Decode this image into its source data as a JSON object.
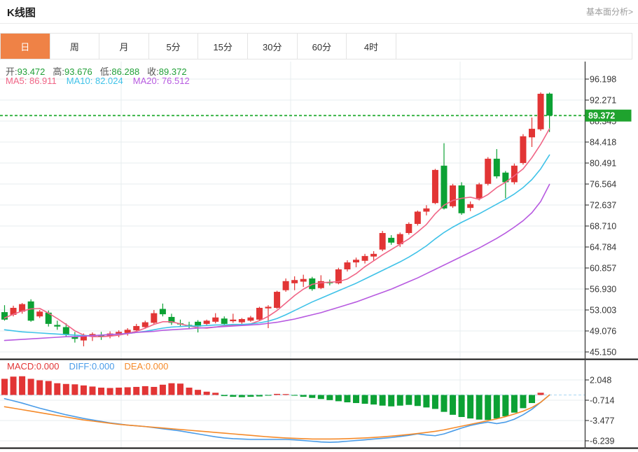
{
  "header": {
    "title": "K线图",
    "link": "基本面分析>"
  },
  "tabs": {
    "items": [
      "日",
      "周",
      "月",
      "5分",
      "15分",
      "30分",
      "60分",
      "4时"
    ],
    "active_index": 0
  },
  "quote": {
    "open_label": "开:",
    "open": "93.472",
    "high_label": "高:",
    "high": "93.676",
    "low_label": "低:",
    "low": "86.288",
    "close_label": "收:",
    "close": "89.372"
  },
  "ma_header": {
    "ma5_label": "MA5:",
    "ma5": "86.911",
    "ma10_label": "MA10:",
    "ma10": "82.024",
    "ma20_label": "MA20:",
    "ma20": "76.512"
  },
  "macd_header": {
    "macd_label": "MACD:",
    "macd": "0.000",
    "diff_label": "DIFF:",
    "diff": "0.000",
    "dea_label": "DEA:",
    "dea": "0.000"
  },
  "chart_data": {
    "type": "candlestick",
    "title": "K线图",
    "interval_selected": "日",
    "price_axis_ticks": [
      "96.198",
      "92.271",
      "88.345",
      "84.418",
      "80.491",
      "76.564",
      "72.637",
      "68.710",
      "64.784",
      "60.857",
      "56.930",
      "53.003",
      "49.076",
      "45.150"
    ],
    "price_axis_range": [
      45.15,
      96.198
    ],
    "macd_axis_ticks": [
      "2.048",
      "-0.714",
      "-3.477",
      "-6.239"
    ],
    "current_price": 89.372,
    "current_price_label": "89.372",
    "candles_ohlc": [
      [
        52.6,
        53.9,
        51.0,
        51.2
      ],
      [
        52.1,
        53.8,
        51.8,
        53.4
      ],
      [
        52.7,
        54.3,
        52.3,
        54.1
      ],
      [
        54.6,
        55.0,
        50.8,
        51.0
      ],
      [
        51.8,
        53.0,
        51.5,
        52.7
      ],
      [
        52.5,
        52.9,
        49.9,
        50.4
      ],
      [
        50.2,
        51.0,
        49.3,
        49.9
      ],
      [
        49.8,
        50.5,
        48.0,
        48.4
      ],
      [
        48.1,
        48.9,
        46.9,
        47.6
      ],
      [
        47.3,
        48.6,
        46.2,
        48.2
      ],
      [
        48.0,
        48.8,
        47.2,
        48.5
      ],
      [
        48.3,
        48.9,
        47.4,
        48.0
      ],
      [
        48.1,
        49.0,
        47.7,
        48.6
      ],
      [
        48.4,
        49.2,
        47.9,
        48.9
      ],
      [
        48.7,
        49.6,
        48.2,
        49.3
      ],
      [
        49.2,
        50.4,
        48.8,
        50.0
      ],
      [
        49.8,
        51.0,
        49.5,
        50.7
      ],
      [
        50.6,
        53.0,
        50.3,
        52.4
      ],
      [
        53.2,
        54.2,
        51.8,
        52.2
      ],
      [
        51.7,
        52.3,
        50.2,
        50.6
      ],
      [
        50.5,
        51.2,
        49.8,
        50.3
      ],
      [
        50.2,
        50.8,
        49.5,
        49.9
      ],
      [
        50.8,
        51.1,
        48.8,
        49.9
      ],
      [
        50.4,
        51.2,
        50.1,
        51.0
      ],
      [
        50.8,
        52.4,
        50.5,
        51.6
      ],
      [
        51.4,
        51.8,
        50.1,
        50.4
      ],
      [
        50.9,
        52.3,
        50.6,
        51.2
      ],
      [
        50.7,
        51.5,
        50.4,
        51.3
      ],
      [
        51.0,
        51.9,
        50.8,
        51.6
      ],
      [
        51.2,
        53.6,
        51.0,
        53.4
      ],
      [
        53.3,
        53.9,
        49.6,
        53.6
      ],
      [
        53.4,
        56.6,
        53.2,
        56.4
      ],
      [
        56.7,
        58.9,
        56.4,
        58.4
      ],
      [
        58.0,
        59.3,
        56.7,
        58.6
      ],
      [
        58.3,
        59.6,
        57.3,
        58.8
      ],
      [
        58.9,
        59.2,
        56.6,
        56.9
      ],
      [
        57.1,
        59.5,
        56.9,
        58.4
      ],
      [
        58.2,
        58.7,
        57.6,
        58.1
      ],
      [
        58.0,
        60.9,
        57.8,
        60.6
      ],
      [
        60.6,
        62.3,
        60.2,
        61.9
      ],
      [
        61.9,
        62.8,
        61.0,
        62.4
      ],
      [
        62.2,
        63.5,
        61.7,
        63.1
      ],
      [
        63.0,
        64.0,
        62.2,
        63.5
      ],
      [
        64.3,
        67.8,
        64.0,
        67.4
      ],
      [
        66.5,
        67.0,
        65.2,
        65.6
      ],
      [
        65.3,
        67.5,
        64.8,
        67.2
      ],
      [
        67.4,
        69.4,
        67.1,
        69.1
      ],
      [
        69.1,
        71.6,
        68.8,
        71.4
      ],
      [
        71.4,
        72.6,
        70.7,
        72.0
      ],
      [
        73.0,
        79.4,
        72.8,
        79.2
      ],
      [
        80.0,
        84.2,
        71.8,
        72.0
      ],
      [
        72.4,
        76.6,
        72.1,
        76.3
      ],
      [
        76.3,
        76.9,
        70.8,
        71.1
      ],
      [
        72.1,
        73.3,
        71.5,
        72.8
      ],
      [
        73.9,
        76.8,
        73.5,
        76.5
      ],
      [
        76.6,
        81.6,
        76.3,
        81.3
      ],
      [
        81.3,
        83.1,
        77.6,
        78.0
      ],
      [
        78.7,
        79.0,
        73.9,
        76.9
      ],
      [
        76.9,
        80.4,
        76.5,
        80.0
      ],
      [
        80.5,
        85.9,
        80.2,
        85.5
      ],
      [
        85.3,
        89.0,
        83.5,
        86.9
      ],
      [
        86.8,
        93.7,
        86.5,
        93.45
      ],
      [
        93.472,
        93.676,
        86.288,
        89.372
      ]
    ],
    "series": [
      {
        "name": "MA5",
        "values": [
          51.5,
          52.2,
          52.8,
          53.2,
          53.3,
          52.4,
          51.4,
          50.3,
          49.1,
          48.3,
          48.0,
          48.0,
          48.1,
          48.3,
          48.6,
          49.0,
          49.6,
          50.3,
          50.8,
          50.8,
          50.4,
          50.0,
          49.7,
          49.6,
          49.8,
          50.0,
          50.1,
          50.2,
          50.4,
          51.0,
          51.8,
          52.9,
          54.3,
          55.7,
          56.9,
          57.8,
          58.1,
          58.2,
          58.3,
          58.8,
          59.8,
          61.1,
          62.2,
          63.3,
          64.3,
          65.3,
          66.3,
          67.6,
          69.0,
          71.0,
          72.6,
          73.5,
          73.9,
          74.1,
          73.7,
          74.6,
          75.9,
          76.9,
          78.1,
          79.4,
          81.5,
          84.0,
          86.9
        ]
      },
      {
        "name": "MA10",
        "values": [
          49.3,
          49.1,
          48.9,
          48.8,
          48.7,
          48.6,
          48.5,
          48.4,
          48.3,
          48.2,
          48.2,
          48.3,
          48.4,
          48.5,
          48.6,
          48.8,
          49.0,
          49.3,
          49.6,
          49.8,
          49.9,
          50.0,
          50.0,
          50.1,
          50.2,
          50.2,
          50.3,
          50.3,
          50.4,
          50.6,
          50.9,
          51.4,
          52.1,
          52.9,
          53.7,
          54.5,
          55.2,
          55.9,
          56.6,
          57.3,
          58.0,
          58.8,
          59.6,
          60.4,
          61.2,
          62.0,
          62.9,
          63.9,
          65.0,
          66.3,
          67.5,
          68.5,
          69.4,
          70.2,
          71.0,
          71.9,
          72.8,
          73.7,
          74.7,
          75.9,
          77.4,
          79.4,
          82.0
        ]
      },
      {
        "name": "MA20",
        "values": [
          47.3,
          47.4,
          47.5,
          47.6,
          47.7,
          47.8,
          47.9,
          48.0,
          48.0,
          48.1,
          48.2,
          48.3,
          48.4,
          48.5,
          48.6,
          48.8,
          48.9,
          49.0,
          49.2,
          49.3,
          49.4,
          49.5,
          49.6,
          49.7,
          49.8,
          49.9,
          50.0,
          50.1,
          50.2,
          50.3,
          50.5,
          50.7,
          51.0,
          51.3,
          51.7,
          52.1,
          52.5,
          53.0,
          53.5,
          54.0,
          54.5,
          55.1,
          55.7,
          56.3,
          56.9,
          57.6,
          58.3,
          59.0,
          59.8,
          60.6,
          61.4,
          62.2,
          63.0,
          63.8,
          64.6,
          65.5,
          66.4,
          67.4,
          68.5,
          69.7,
          71.2,
          73.3,
          76.5
        ]
      }
    ],
    "macd": {
      "hist": [
        2.2,
        2.5,
        2.55,
        2.2,
        2.0,
        1.9,
        1.6,
        1.5,
        1.45,
        1.3,
        1.15,
        1.0,
        0.95,
        1.0,
        1.05,
        1.1,
        1.2,
        1.1,
        1.4,
        1.6,
        1.55,
        1.0,
        0.7,
        0.45,
        0.3,
        -0.15,
        -0.25,
        -0.3,
        -0.25,
        -0.2,
        -0.1,
        0.15,
        0.12,
        -0.1,
        -0.25,
        -0.4,
        -0.55,
        -0.7,
        -0.85,
        -1.0,
        -1.1,
        -1.2,
        -1.3,
        -1.45,
        -1.55,
        -1.45,
        -1.35,
        -1.5,
        -1.7,
        -1.9,
        -2.3,
        -2.7,
        -3.0,
        -3.2,
        -3.35,
        -3.4,
        -3.2,
        -2.9,
        -2.4,
        -1.8,
        -1.1,
        0.3,
        0.0
      ],
      "diff": [
        -0.5,
        -0.8,
        -1.1,
        -1.45,
        -1.8,
        -2.1,
        -2.4,
        -2.7,
        -2.95,
        -3.2,
        -3.4,
        -3.6,
        -3.8,
        -3.95,
        -4.1,
        -4.2,
        -4.3,
        -4.45,
        -4.6,
        -4.75,
        -4.9,
        -5.1,
        -5.3,
        -5.5,
        -5.7,
        -5.85,
        -5.95,
        -6.0,
        -6.05,
        -6.05,
        -6.05,
        -6.05,
        -6.05,
        -6.1,
        -6.2,
        -6.3,
        -6.4,
        -6.45,
        -6.4,
        -6.3,
        -6.2,
        -6.1,
        -6.0,
        -5.9,
        -5.8,
        -5.65,
        -5.5,
        -5.3,
        -5.45,
        -5.55,
        -5.3,
        -4.9,
        -4.5,
        -4.15,
        -3.9,
        -3.7,
        -3.9,
        -3.7,
        -3.3,
        -2.7,
        -1.95,
        -1.0,
        0.0
      ],
      "dea": [
        -1.6,
        -1.8,
        -2.0,
        -2.2,
        -2.4,
        -2.6,
        -2.8,
        -3.0,
        -3.2,
        -3.4,
        -3.55,
        -3.7,
        -3.85,
        -4.0,
        -4.1,
        -4.2,
        -4.3,
        -4.4,
        -4.5,
        -4.6,
        -4.7,
        -4.8,
        -4.9,
        -5.0,
        -5.1,
        -5.2,
        -5.3,
        -5.4,
        -5.5,
        -5.6,
        -5.7,
        -5.78,
        -5.85,
        -5.9,
        -5.95,
        -6.0,
        -6.0,
        -6.0,
        -5.98,
        -5.95,
        -5.9,
        -5.85,
        -5.78,
        -5.7,
        -5.6,
        -5.5,
        -5.38,
        -5.25,
        -5.1,
        -4.95,
        -4.75,
        -4.5,
        -4.25,
        -4.0,
        -3.75,
        -3.5,
        -3.25,
        -2.95,
        -2.6,
        -2.2,
        -1.7,
        -1.0,
        0.0
      ]
    },
    "colors": {
      "up": "#e23535",
      "down": "#0ca134",
      "ma5": "#f06586",
      "ma10": "#3fc2e8",
      "ma20": "#b75ae0",
      "diff": "#4a9ce8",
      "dea": "#f58a2a",
      "price_line": "#3cb549",
      "price_tag": "#1fa32e",
      "tab_active": "#ef8246",
      "grid": "#e7ecef",
      "zero_line": "#b5ddf2"
    },
    "grid": true,
    "legend_position": "top-left-overlay"
  }
}
